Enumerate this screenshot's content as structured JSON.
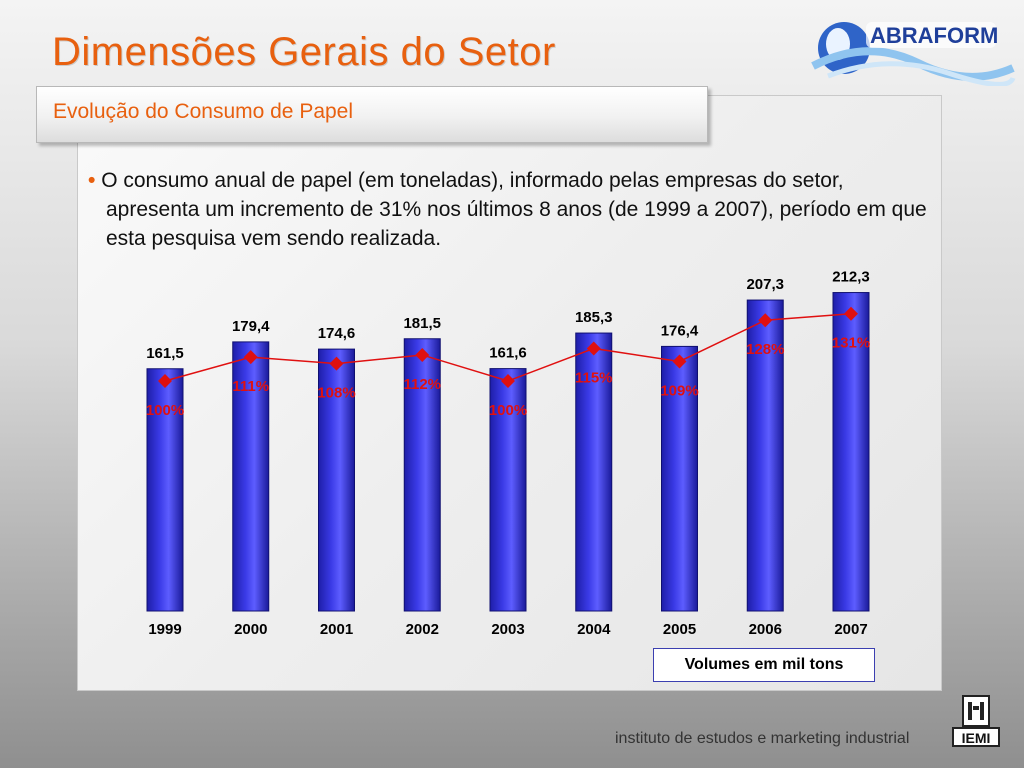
{
  "title": "Dimensões Gerais do Setor",
  "subtitle": "Evolução do Consumo de Papel",
  "bullet": "O consumo anual de papel (em toneladas), informado pelas empresas do setor, apresenta um incremento de 31% nos últimos 8 anos (de 1999 a 2007), período em que esta pesquisa vem sendo realizada.",
  "logo_text": "ABRAFORM",
  "footer": "instituto de estudos e marketing industrial",
  "footer_logo_text": "IEMI",
  "volume_note": "Volumes em mil tons",
  "colors": {
    "title": "#e8600f",
    "bar": "#3a3ae6",
    "line": "#e01010",
    "marker": "#e01010",
    "percent_label": "#e01010"
  },
  "chart_data": {
    "type": "bar",
    "categories": [
      "1999",
      "2000",
      "2001",
      "2002",
      "2003",
      "2004",
      "2005",
      "2006",
      "2007"
    ],
    "values": [
      161.5,
      179.4,
      174.6,
      181.5,
      161.6,
      185.3,
      176.4,
      207.3,
      212.3
    ],
    "value_labels": [
      "161,5",
      "179,4",
      "174,6",
      "181,5",
      "161,6",
      "185,3",
      "176,4",
      "207,3",
      "212,3"
    ],
    "index_series": {
      "type": "line",
      "values": [
        100,
        111,
        108,
        112,
        100,
        115,
        109,
        128,
        131
      ],
      "labels": [
        "100%",
        "111%",
        "108%",
        "112%",
        "100%",
        "115%",
        "109%",
        "128%",
        "131%"
      ]
    },
    "ylim": [
      0,
      230
    ],
    "grid": false
  }
}
